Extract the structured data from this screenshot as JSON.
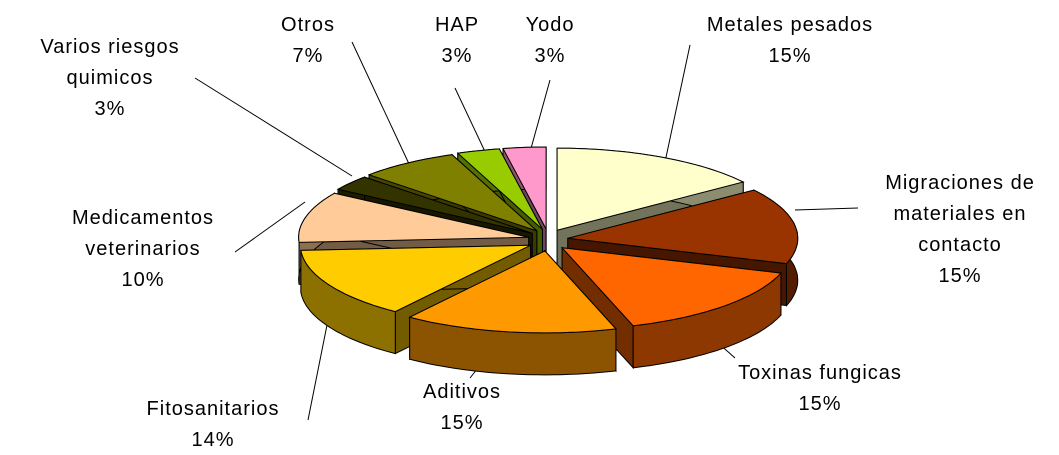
{
  "chart_data": {
    "type": "pie",
    "categories": [
      "Metales pesados",
      "Migraciones de materiales en contacto",
      "Toxinas fungicas",
      "Aditivos",
      "Fitosanitarios",
      "Medicamentos veterinarios",
      "Varios riesgos quimicos",
      "Otros",
      "HAP",
      "Yodo"
    ],
    "values": [
      15,
      15,
      15,
      15,
      14,
      10,
      3,
      7,
      3,
      3
    ],
    "value_labels": [
      "15%",
      "15%",
      "15%",
      "15%",
      "14%",
      "10%",
      "3%",
      "7%",
      "3%",
      "3%"
    ],
    "colors": [
      "#ffffcc",
      "#993300",
      "#ff6600",
      "#ff9900",
      "#ffcc00",
      "#ffcc99",
      "#333300",
      "#808000",
      "#99cc00",
      "#ff99cc"
    ]
  }
}
